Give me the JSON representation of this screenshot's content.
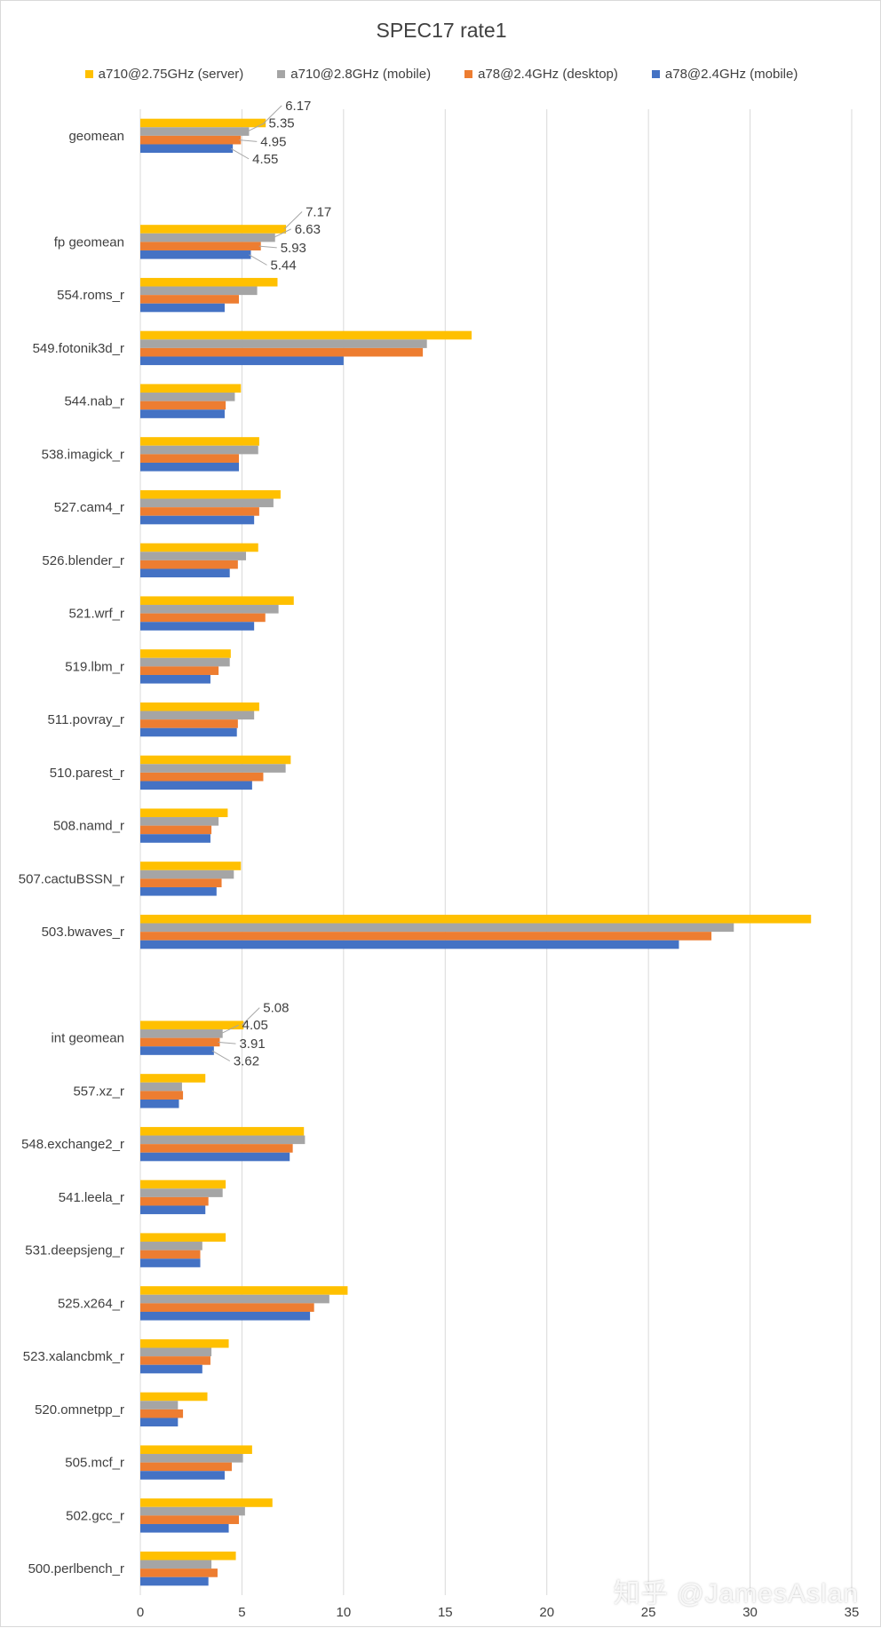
{
  "chart_data": {
    "type": "bar",
    "orientation": "horizontal",
    "title": "SPEC17 rate1",
    "xlabel": "",
    "ylabel": "",
    "xlim": [
      0,
      35
    ],
    "xticks": [
      0,
      5,
      10,
      15,
      20,
      25,
      30,
      35
    ],
    "grid": true,
    "legend_position": "top",
    "categories": [
      "geomean",
      "",
      "fp geomean",
      "554.roms_r",
      "549.fotonik3d_r",
      "544.nab_r",
      "538.imagick_r",
      "527.cam4_r",
      "526.blender_r",
      "521.wrf_r",
      "519.lbm_r",
      "511.povray_r",
      "510.parest_r",
      "508.namd_r",
      "507.cactuBSSN_r",
      "503.bwaves_r",
      "",
      "int geomean",
      "557.xz_r",
      "548.exchange2_r",
      "541.leela_r",
      "531.deepsjeng_r",
      "525.x264_r",
      "523.xalancbmk_r",
      "520.omnetpp_r",
      "505.mcf_r",
      "502.gcc_r",
      "500.perlbench_r"
    ],
    "series": [
      {
        "name": "a710@2.75GHz (server)",
        "color": "#FFC000",
        "values": [
          6.17,
          null,
          7.17,
          6.75,
          16.3,
          4.95,
          5.85,
          6.9,
          5.8,
          7.55,
          4.45,
          5.85,
          7.4,
          4.3,
          4.95,
          33.0,
          null,
          5.08,
          3.2,
          8.05,
          4.2,
          4.2,
          10.2,
          4.35,
          3.3,
          5.5,
          6.5,
          4.7
        ]
      },
      {
        "name": "a710@2.8GHz (mobile)",
        "color": "#A5A5A5",
        "values": [
          5.35,
          null,
          6.63,
          5.75,
          14.1,
          4.65,
          5.8,
          6.55,
          5.2,
          6.8,
          4.4,
          5.6,
          7.15,
          3.85,
          4.6,
          29.2,
          null,
          4.05,
          2.05,
          8.1,
          4.05,
          3.05,
          9.3,
          3.5,
          1.85,
          5.05,
          5.15,
          3.5
        ]
      },
      {
        "name": "a78@2.4GHz (desktop)",
        "color": "#ED7D31",
        "values": [
          4.95,
          null,
          5.93,
          4.85,
          13.9,
          4.2,
          4.85,
          5.85,
          4.8,
          6.15,
          3.85,
          4.8,
          6.05,
          3.5,
          4.0,
          28.1,
          null,
          3.91,
          2.1,
          7.5,
          3.35,
          2.95,
          8.55,
          3.45,
          2.1,
          4.5,
          4.85,
          3.8
        ]
      },
      {
        "name": "a78@2.4GHz (mobile)",
        "color": "#4472C4",
        "values": [
          4.55,
          null,
          5.44,
          4.15,
          10.0,
          4.15,
          4.85,
          5.6,
          4.4,
          5.6,
          3.45,
          4.75,
          5.5,
          3.45,
          3.75,
          26.5,
          null,
          3.62,
          1.9,
          7.35,
          3.2,
          2.95,
          8.35,
          3.05,
          1.85,
          4.15,
          4.35,
          3.35
        ]
      }
    ],
    "data_labels": {
      "geomean": [
        "6.17",
        "5.35",
        "4.95",
        "4.55"
      ],
      "fp geomean": [
        "7.17",
        "6.63",
        "5.93",
        "5.44"
      ],
      "int geomean": [
        "5.08",
        "4.05",
        "3.91",
        "3.62"
      ]
    }
  },
  "watermark": "知乎 @JamesAslan"
}
